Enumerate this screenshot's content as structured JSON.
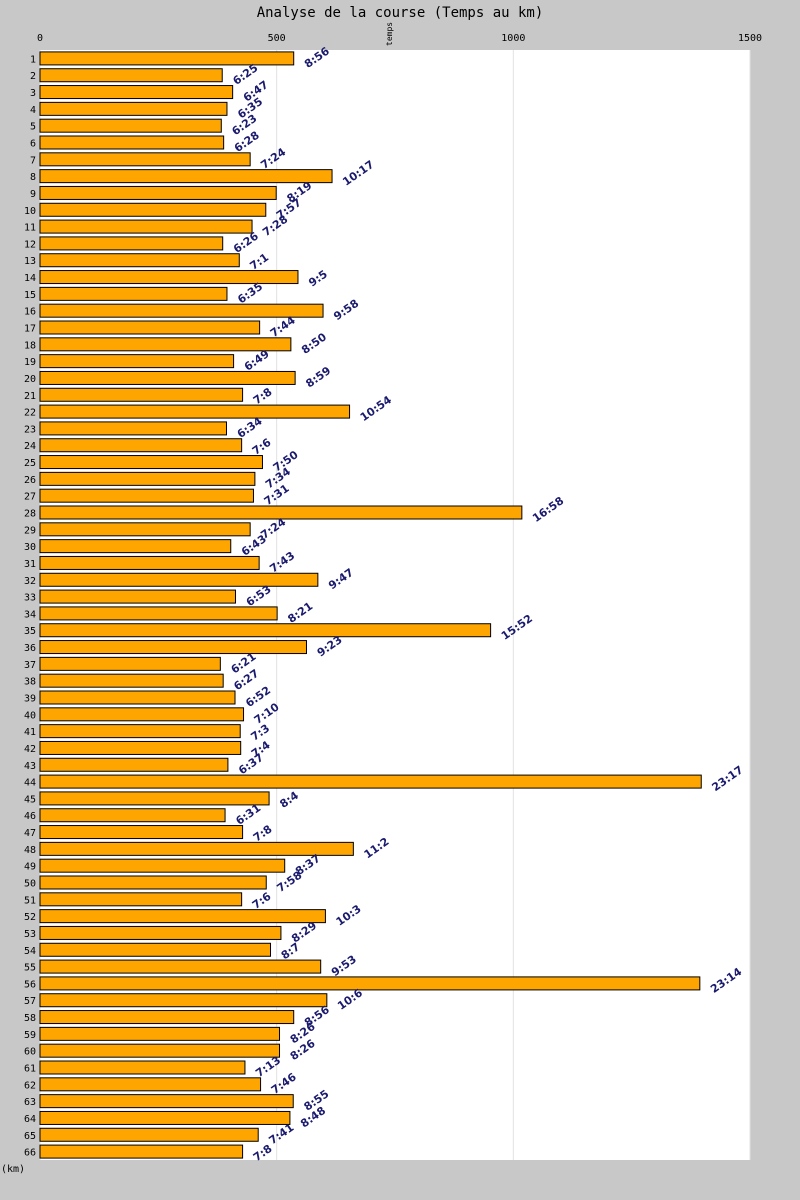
{
  "chart_data": {
    "type": "bar",
    "orientation": "horizontal",
    "title": "Analyse de la course (Temps au km)",
    "xlabel": "temps",
    "ylabel": "(km)",
    "xlim": [
      0,
      1500
    ],
    "xticks": [
      0,
      500,
      1000,
      1500
    ],
    "grid": true,
    "bar_color": "#ffa500",
    "label_color": "#1a1a6e",
    "categories": [
      "1",
      "2",
      "3",
      "4",
      "5",
      "6",
      "7",
      "8",
      "9",
      "10",
      "11",
      "12",
      "13",
      "14",
      "15",
      "16",
      "17",
      "18",
      "19",
      "20",
      "21",
      "22",
      "23",
      "24",
      "25",
      "26",
      "27",
      "28",
      "29",
      "30",
      "31",
      "32",
      "33",
      "34",
      "35",
      "36",
      "37",
      "38",
      "39",
      "40",
      "41",
      "42",
      "43",
      "44",
      "45",
      "46",
      "47",
      "48",
      "49",
      "50",
      "51",
      "52",
      "53",
      "54",
      "55",
      "56",
      "57",
      "58",
      "59",
      "60",
      "61",
      "62",
      "63",
      "64",
      "65",
      "66"
    ],
    "values": [
      536,
      385,
      407,
      395,
      383,
      388,
      444,
      617,
      499,
      477,
      448,
      386,
      421,
      545,
      395,
      598,
      464,
      530,
      409,
      539,
      428,
      654,
      394,
      426,
      470,
      454,
      451,
      1018,
      444,
      403,
      463,
      587,
      413,
      501,
      952,
      563,
      381,
      387,
      412,
      430,
      423,
      424,
      397,
      1397,
      484,
      391,
      428,
      662,
      517,
      478,
      426,
      603,
      509,
      487,
      593,
      1394,
      606,
      536,
      506,
      506,
      433,
      466,
      535,
      528,
      461,
      428
    ],
    "data_labels": [
      "8:56",
      "6:25",
      "6:47",
      "6:35",
      "6:23",
      "6:28",
      "7:24",
      "10:17",
      "8:19",
      "7:57",
      "7:28",
      "6:26",
      "7:1",
      "9:5",
      "6:35",
      "9:58",
      "7:44",
      "8:50",
      "6:49",
      "8:59",
      "7:8",
      "10:54",
      "6:34",
      "7:6",
      "7:50",
      "7:34",
      "7:31",
      "16:58",
      "7:24",
      "6:43",
      "7:43",
      "9:47",
      "6:53",
      "8:21",
      "15:52",
      "9:23",
      "6:21",
      "6:27",
      "6:52",
      "7:10",
      "7:3",
      "7:4",
      "6:37",
      "23:17",
      "8:4",
      "6:31",
      "7:8",
      "11:2",
      "8:37",
      "7:58",
      "7:6",
      "10:3",
      "8:29",
      "8:7",
      "9:53",
      "23:14",
      "10:6",
      "8:56",
      "8:26",
      "8:26",
      "7:13",
      "7:46",
      "8:55",
      "8:48",
      "7:41",
      "7:8"
    ]
  }
}
